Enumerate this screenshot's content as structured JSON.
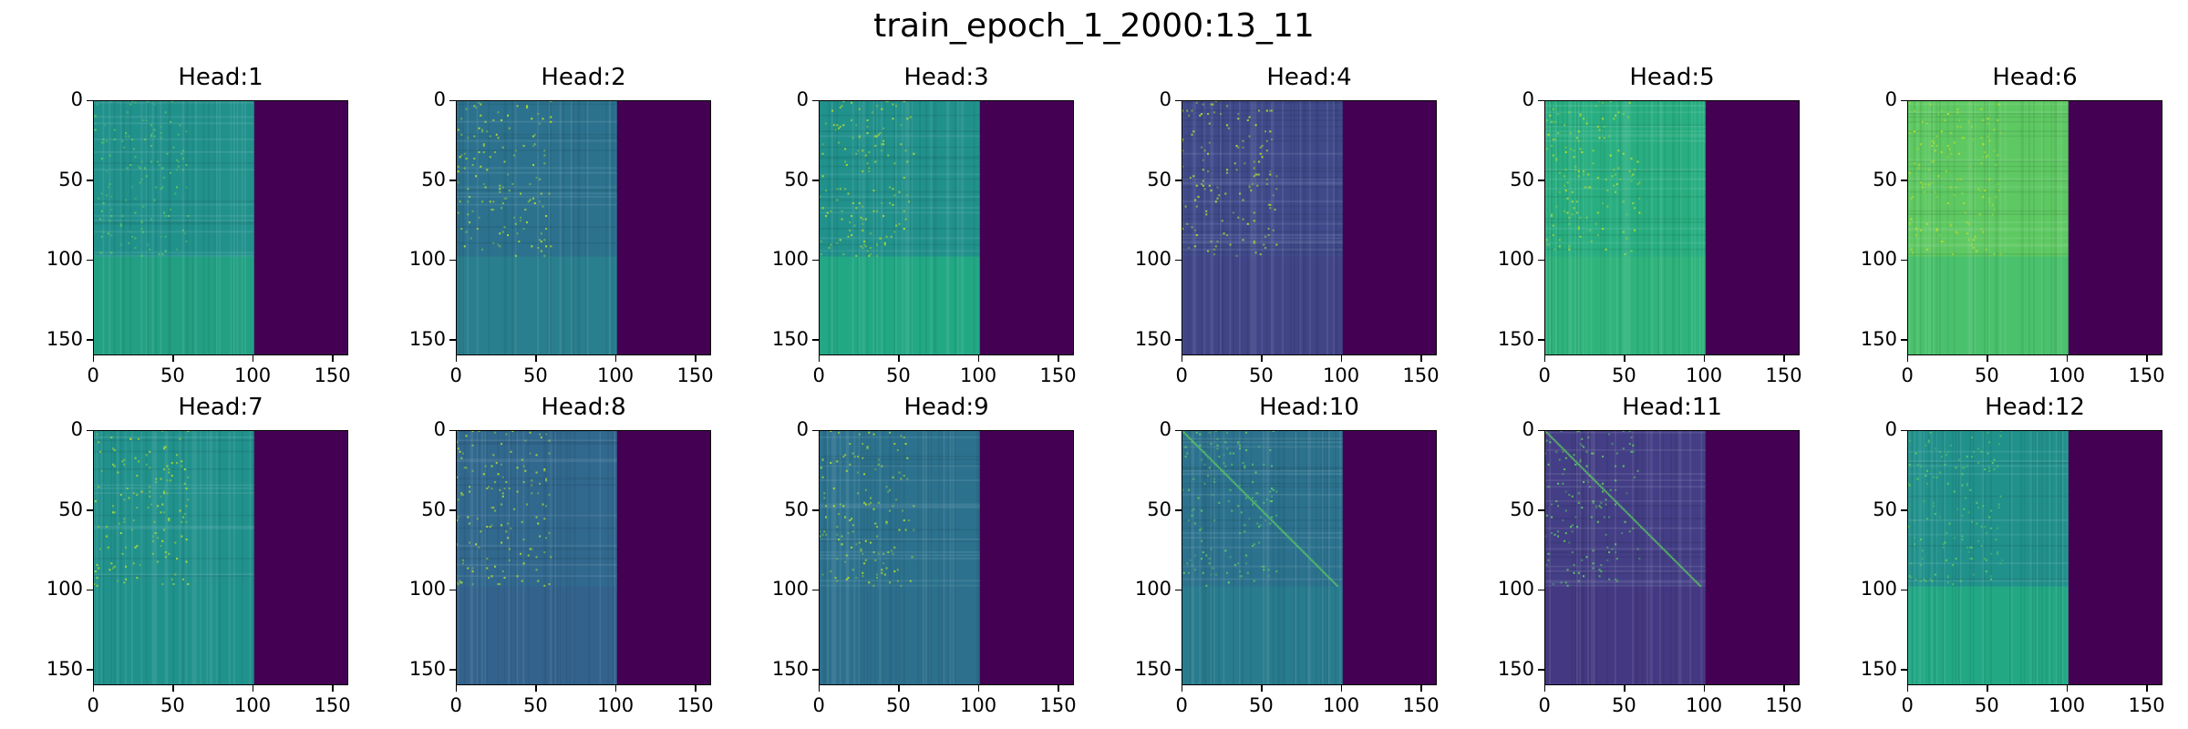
{
  "figure_title": "train_epoch_1_2000:13_11",
  "colormap": [
    "#440154",
    "#472d7b",
    "#3b528b",
    "#2c728e",
    "#21918c",
    "#28ae80",
    "#5ec962",
    "#addc30",
    "#fde725"
  ],
  "chart_data": {
    "type": "heatmap",
    "title": "train_epoch_1_2000:13_11",
    "layout": "2 rows x 6 columns",
    "matrix_size": [
      160,
      160
    ],
    "x_ticks": [
      "0",
      "50",
      "100",
      "150"
    ],
    "y_ticks": [
      "0",
      "50",
      "100",
      "150"
    ],
    "xlim": [
      0,
      160
    ],
    "ylim": [
      160,
      0
    ],
    "masked_from_column": 101,
    "masked_color": "#440154",
    "panels": [
      {
        "title": "Head:1",
        "base_color": "#21918c",
        "speckle_color": "#5ec962",
        "lower_color": "#23a083",
        "diagonal": false
      },
      {
        "title": "Head:2",
        "base_color": "#2c728e",
        "speckle_color": "#addc30",
        "lower_color": "#2a7f8e",
        "diagonal": false
      },
      {
        "title": "Head:3",
        "base_color": "#21918c",
        "speckle_color": "#addc30",
        "lower_color": "#22a884",
        "diagonal": false
      },
      {
        "title": "Head:4",
        "base_color": "#3f4a8a",
        "speckle_color": "#addc30",
        "lower_color": "#414487",
        "diagonal": false
      },
      {
        "title": "Head:5",
        "base_color": "#28ae80",
        "speckle_color": "#addc30",
        "lower_color": "#2fb47c",
        "diagonal": false
      },
      {
        "title": "Head:6",
        "base_color": "#5ec962",
        "speckle_color": "#b8de29",
        "lower_color": "#4ac16d",
        "diagonal": false
      },
      {
        "title": "Head:7",
        "base_color": "#21918c",
        "speckle_color": "#addc30",
        "lower_color": "#20928c",
        "diagonal": false
      },
      {
        "title": "Head:8",
        "base_color": "#31688e",
        "speckle_color": "#addc30",
        "lower_color": "#33638d",
        "diagonal": false
      },
      {
        "title": "Head:9",
        "base_color": "#2c728e",
        "speckle_color": "#addc30",
        "lower_color": "#2d708e",
        "diagonal": false
      },
      {
        "title": "Head:10",
        "base_color": "#2c728e",
        "speckle_color": "#5ec962",
        "lower_color": "#287c8e",
        "diagonal": true
      },
      {
        "title": "Head:11",
        "base_color": "#433e85",
        "speckle_color": "#5ec962",
        "lower_color": "#453882",
        "diagonal": true
      },
      {
        "title": "Head:12",
        "base_color": "#21918c",
        "speckle_color": "#5ec962",
        "lower_color": "#22a884",
        "diagonal": false
      }
    ]
  }
}
